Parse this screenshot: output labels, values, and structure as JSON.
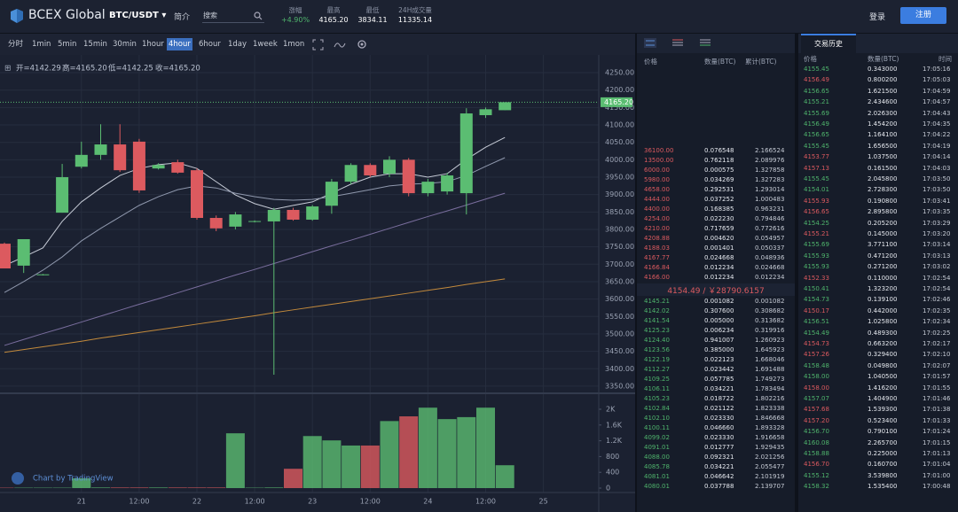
{
  "header": {
    "logo": "BCEX Global",
    "pair": "BTC/USDT",
    "intro": "简介",
    "search": "搜索",
    "stats": [
      {
        "label": "涨幅",
        "value": "+4.90%"
      },
      {
        "label": "最高",
        "value": "4165.20"
      },
      {
        "label": "最低",
        "value": "3834.11"
      },
      {
        "label": "24H成交量",
        "value": "11335.14"
      }
    ],
    "login": "登录",
    "register": "注册"
  },
  "toolbar": {
    "intervals": [
      "分时",
      "1min",
      "5min",
      "15min",
      "30min",
      "1hour",
      "4hour",
      "6hour",
      "1day",
      "1week",
      "1mon"
    ],
    "active": 6
  },
  "chart_data": {
    "type": "candlestick",
    "ohlc_text": [
      "开=4142.29",
      "高=4165.20",
      "低=4142.25",
      "收=4165.20"
    ],
    "categories": [
      null,
      null,
      null,
      null,
      "21",
      null,
      null,
      "12:00",
      null,
      null,
      "22",
      null,
      null,
      "12:00",
      null,
      null,
      "23",
      null,
      null,
      "12:00",
      null,
      null,
      "24",
      null,
      null,
      "12:00",
      null,
      null,
      "25",
      null,
      null
    ],
    "open": [
      3759,
      3696,
      3670,
      3848,
      3980,
      4014,
      4044,
      4052,
      3975,
      3993,
      3970,
      3833,
      3808,
      3822,
      3823,
      3856,
      3828,
      3868,
      3937,
      3985,
      3960,
      4000,
      3904,
      3909,
      3904,
      4128,
      4142.29,
      null,
      null,
      null,
      null
    ],
    "high": [
      3762,
      3772,
      3672,
      3988,
      4052,
      4102,
      4102,
      4060,
      3990,
      4000,
      3975,
      3840,
      3850,
      3826,
      3862,
      3862,
      3870,
      3945,
      3990,
      3990,
      4010,
      4005,
      3945,
      3962,
      4148,
      4150,
      4165.2,
      null,
      null,
      null,
      null
    ],
    "low": [
      3688,
      3675,
      3668,
      3848,
      3975,
      4000,
      3965,
      3905,
      3972,
      3960,
      3828,
      3795,
      3800,
      3820,
      3383,
      3825,
      3825,
      3845,
      3930,
      3950,
      3950,
      3895,
      3895,
      3900,
      3843,
      4120,
      4142.25,
      null,
      null,
      null,
      null
    ],
    "close": [
      3688,
      3772,
      3671,
      3950,
      4014,
      4044,
      3970,
      3912,
      3985,
      3963,
      3833,
      3803,
      3843,
      3824,
      3856,
      3828,
      3866,
      3937,
      3985,
      3955,
      4000,
      3904,
      3937,
      3955,
      4133,
      4145,
      4165.2,
      null,
      null,
      null,
      null
    ],
    "ylim": [
      3332,
      4301
    ],
    "yticks": [
      {
        "value": 3350,
        "label": "3350.00"
      },
      {
        "value": 3400,
        "label": "3400.00"
      },
      {
        "value": 3450,
        "label": "3450.00"
      },
      {
        "value": 3500,
        "label": "3500.00"
      },
      {
        "value": 3550,
        "label": "3550.00"
      },
      {
        "value": 3600,
        "label": "3600.00"
      },
      {
        "value": 3650,
        "label": "3650.00"
      },
      {
        "value": 3700,
        "label": "3700.00"
      },
      {
        "value": 3750,
        "label": "3750.00"
      },
      {
        "value": 3800,
        "label": "3800.00"
      },
      {
        "value": 3850,
        "label": "3850.00"
      },
      {
        "value": 3900,
        "label": "3900.00"
      },
      {
        "value": 3950,
        "label": "3950.00"
      },
      {
        "value": 4000,
        "label": "4000.00"
      },
      {
        "value": 4050,
        "label": "4050.00"
      },
      {
        "value": 4100,
        "label": "4100.00"
      },
      {
        "value": 4150,
        "label": "4150.00"
      },
      {
        "value": 4200,
        "label": "4200.00"
      },
      {
        "value": 4250,
        "label": "4250.00"
      }
    ],
    "last_price": {
      "value": 4165.2,
      "label": "4165.20"
    },
    "up_color": "#5bbd72",
    "down_color": "#dc5a5f",
    "grid": true,
    "moving_averages": [
      {
        "color": "#c6cbd6",
        "values": [
          3696,
          3721,
          3747,
          3823,
          3879,
          3919,
          3955,
          3975,
          3986,
          3991,
          3975,
          3937,
          3899,
          3874,
          3858,
          3869,
          3879,
          3904,
          3930,
          3950,
          3960,
          3960,
          3950,
          3960,
          4001,
          4036,
          4064,
          null,
          null,
          null,
          null
        ]
      },
      {
        "color": "#8f98ad",
        "values": [
          3619,
          3650,
          3683,
          3721,
          3767,
          3803,
          3836,
          3869,
          3894,
          3914,
          3925,
          3919,
          3904,
          3894,
          3886,
          3884,
          3886,
          3894,
          3904,
          3914,
          3925,
          3930,
          3932,
          3937,
          3955,
          3981,
          4006,
          null,
          null,
          null,
          null
        ]
      },
      {
        "color": "#7a6e9e",
        "values": [
          3467,
          3484,
          3501,
          3517,
          3534,
          3551,
          3568,
          3585,
          3601,
          3618,
          3635,
          3652,
          3669,
          3685,
          3702,
          3719,
          3736,
          3753,
          3769,
          3786,
          3803,
          3820,
          3837,
          3853,
          3870,
          3887,
          3904,
          null,
          null,
          null,
          null
        ]
      },
      {
        "color": "#c38a3c",
        "values": [
          3447,
          3455,
          3463,
          3471,
          3479,
          3488,
          3496,
          3504,
          3512,
          3520,
          3528,
          3536,
          3544,
          3552,
          3561,
          3569,
          3577,
          3585,
          3593,
          3601,
          3609,
          3617,
          3625,
          3633,
          3642,
          3650,
          3658,
          null,
          null,
          null,
          null
        ]
      }
    ],
    "volume": {
      "values": [
        10,
        10,
        10,
        10,
        250,
        15,
        15,
        15,
        15,
        15,
        15,
        15,
        1390,
        10,
        15,
        490,
        1320,
        1210,
        1080,
        1080,
        1700,
        1820,
        2040,
        1750,
        1800,
        2040,
        580,
        null,
        null,
        null,
        null
      ],
      "ylim": [
        -112,
        2382
      ],
      "yticks": [
        0,
        400,
        800,
        {
          "value": 1200,
          "label": "1.2K"
        },
        {
          "value": 1600,
          "label": "1.6K"
        },
        {
          "value": 2000,
          "label": "2K"
        }
      ]
    },
    "watermark": "Chart by TradingView"
  },
  "order_book": {
    "columns": [
      "价格",
      "数量(BTC)",
      "累计(BTC)"
    ],
    "asks": [
      [
        "36100.00",
        "0.076548",
        "2.166524"
      ],
      [
        "13500.00",
        "0.762118",
        "2.089976"
      ],
      [
        "6000.00",
        "0.000575",
        "1.327858"
      ],
      [
        "5980.00",
        "0.034269",
        "1.327283"
      ],
      [
        "4658.00",
        "0.292531",
        "1.293014"
      ],
      [
        "4444.00",
        "0.037252",
        "1.000483"
      ],
      [
        "4400.00",
        "0.168385",
        "0.963231"
      ],
      [
        "4254.00",
        "0.022230",
        "0.794846"
      ],
      [
        "4210.00",
        "0.717659",
        "0.772616"
      ],
      [
        "4208.88",
        "0.004620",
        "0.054957"
      ],
      [
        "4188.03",
        "0.001401",
        "0.050337"
      ],
      [
        "4167.77",
        "0.024668",
        "0.048936"
      ],
      [
        "4166.84",
        "0.012234",
        "0.024668"
      ],
      [
        "4166.00",
        "0.012234",
        "0.012234"
      ]
    ],
    "mid": "4154.49 / ￥28790.6157",
    "bids": [
      [
        "4145.21",
        "0.001082",
        "0.001082"
      ],
      [
        "4142.02",
        "0.307600",
        "0.308682"
      ],
      [
        "4141.54",
        "0.005000",
        "0.313682"
      ],
      [
        "4125.23",
        "0.006234",
        "0.319916"
      ],
      [
        "4124.40",
        "0.941007",
        "1.260923"
      ],
      [
        "4123.56",
        "0.385000",
        "1.645923"
      ],
      [
        "4122.19",
        "0.022123",
        "1.668046"
      ],
      [
        "4112.27",
        "0.023442",
        "1.691488"
      ],
      [
        "4109.25",
        "0.057785",
        "1.749273"
      ],
      [
        "4106.11",
        "0.034221",
        "1.783494"
      ],
      [
        "4105.23",
        "0.018722",
        "1.802216"
      ],
      [
        "4102.84",
        "0.021122",
        "1.823338"
      ],
      [
        "4102.10",
        "0.023330",
        "1.846668"
      ],
      [
        "4100.11",
        "0.046660",
        "1.893328"
      ],
      [
        "4099.02",
        "0.023330",
        "1.916658"
      ],
      [
        "4091.01",
        "0.012777",
        "1.929435"
      ],
      [
        "4088.00",
        "0.092321",
        "2.021256"
      ],
      [
        "4085.78",
        "0.034221",
        "2.055477"
      ],
      [
        "4081.01",
        "0.046642",
        "2.101919"
      ],
      [
        "4080.01",
        "0.037788",
        "2.139707"
      ]
    ]
  },
  "trade_history": {
    "tab": "交易历史",
    "columns": [
      "价格",
      "数量(BTC)",
      "时间"
    ],
    "rows": [
      [
        "4155.45",
        "0.343000",
        "17:05:16"
      ],
      [
        "4156.49",
        "0.800200",
        "17:05:03"
      ],
      [
        "4156.65",
        "1.621500",
        "17:04:59"
      ],
      [
        "4155.21",
        "2.434600",
        "17:04:57"
      ],
      [
        "4155.69",
        "2.026300",
        "17:04:43"
      ],
      [
        "4156.49",
        "1.454200",
        "17:04:35"
      ],
      [
        "4156.65",
        "1.164100",
        "17:04:22"
      ],
      [
        "4155.45",
        "1.656500",
        "17:04:19"
      ],
      [
        "4153.77",
        "1.037500",
        "17:04:14"
      ],
      [
        "4157.13",
        "0.161500",
        "17:04:03"
      ],
      [
        "4155.45",
        "2.045800",
        "17:03:50"
      ],
      [
        "4154.01",
        "2.728300",
        "17:03:50"
      ],
      [
        "4155.93",
        "0.190800",
        "17:03:41"
      ],
      [
        "4156.65",
        "2.895800",
        "17:03:35"
      ],
      [
        "4154.25",
        "0.205200",
        "17:03:29"
      ],
      [
        "4155.21",
        "0.145000",
        "17:03:20"
      ],
      [
        "4155.69",
        "3.771100",
        "17:03:14"
      ],
      [
        "4155.93",
        "0.471200",
        "17:03:13"
      ],
      [
        "4155.93",
        "0.271200",
        "17:03:02"
      ],
      [
        "4152.33",
        "0.110000",
        "17:02:54"
      ],
      [
        "4150.41",
        "1.323200",
        "17:02:54"
      ],
      [
        "4154.73",
        "0.139100",
        "17:02:46"
      ],
      [
        "4150.17",
        "0.442000",
        "17:02:35"
      ],
      [
        "4156.51",
        "1.025800",
        "17:02:34"
      ],
      [
        "4154.49",
        "0.489300",
        "17:02:25"
      ],
      [
        "4154.73",
        "0.663200",
        "17:02:17"
      ],
      [
        "4157.26",
        "0.329400",
        "17:02:10"
      ],
      [
        "4158.48",
        "0.049800",
        "17:02:07"
      ],
      [
        "4158.00",
        "1.040500",
        "17:01:57"
      ],
      [
        "4158.00",
        "1.416200",
        "17:01:55"
      ],
      [
        "4157.07",
        "1.404900",
        "17:01:46"
      ],
      [
        "4157.68",
        "1.539300",
        "17:01:38"
      ],
      [
        "4157.20",
        "0.523400",
        "17:01:33"
      ],
      [
        "4156.70",
        "0.790100",
        "17:01:24"
      ],
      [
        "4160.08",
        "2.265700",
        "17:01:15"
      ],
      [
        "4158.88",
        "0.225000",
        "17:01:13"
      ],
      [
        "4156.70",
        "0.160700",
        "17:01:04"
      ],
      [
        "4155.12",
        "3.539800",
        "17:01:00"
      ],
      [
        "4158.32",
        "1.535400",
        "17:00:48"
      ]
    ],
    "colors": [
      "#4fb46c",
      "#dc5a5f",
      "#4fb46c",
      "#4fb46c",
      "#4fb46c",
      "#4fb46c",
      "#4fb46c",
      "#4fb46c",
      "#dc5a5f",
      "#dc5a5f",
      "#4fb46c",
      "#4fb46c",
      "#dc5a5f",
      "#dc5a5f",
      "#4fb46c",
      "#dc5a5f",
      "#4fb46c",
      "#4fb46c",
      "#4fb46c",
      "#dc5a5f",
      "#4fb46c",
      "#4fb46c",
      "#dc5a5f",
      "#4fb46c",
      "#4fb46c",
      "#dc5a5f",
      "#dc5a5f",
      "#4fb46c",
      "#4fb46c",
      "#dc5a5f",
      "#4fb46c",
      "#dc5a5f",
      "#dc5a5f",
      "#4fb46c",
      "#4fb46c",
      "#4fb46c",
      "#dc5a5f",
      "#4fb46c",
      "#4fb46c"
    ]
  }
}
